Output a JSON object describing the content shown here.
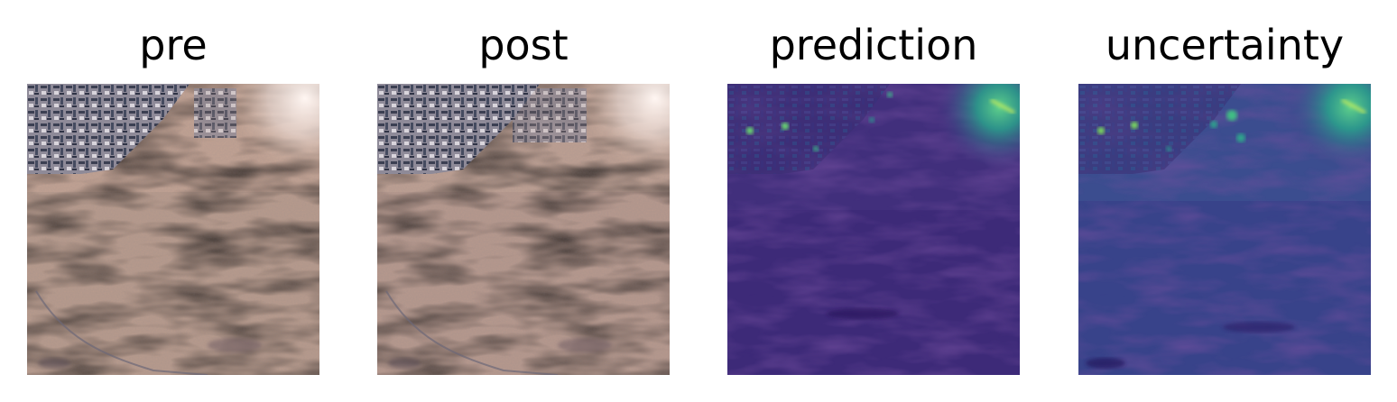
{
  "panels": [
    {
      "title": "pre"
    },
    {
      "title": "post"
    },
    {
      "title": "prediction"
    },
    {
      "title": "uncertainty"
    }
  ]
}
